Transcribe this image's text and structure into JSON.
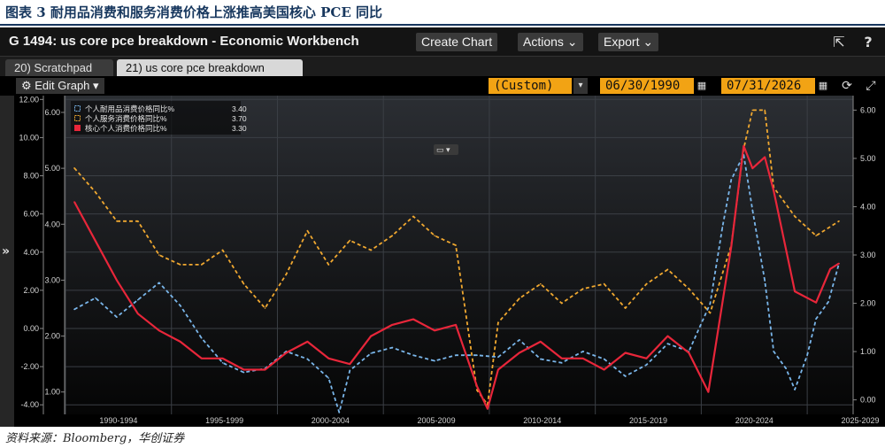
{
  "caption": "图表 3 耐用品消费和服务消费价格上涨推高美国核心 PCE 同比",
  "source": "资料来源：Bloomberg，华创证券",
  "window": {
    "title": "G 1494: us core pce breakdown - Economic Workbench",
    "create_chart": "Create Chart",
    "actions": "Actions ⌄",
    "export": "Export ⌄",
    "help": "?"
  },
  "tabs": [
    {
      "label": "20) Scratchpad"
    },
    {
      "label": "21) us core pce breakdown"
    }
  ],
  "toolbar": {
    "edit_graph": "⚙ Edit Graph ▾",
    "period": "(Custom)",
    "start_date": "06/30/1990",
    "end_date": "07/31/2026"
  },
  "colors": {
    "durable": "#7ab6ea",
    "services": "#f0a830",
    "core": "#e8263a",
    "background": "#000000"
  },
  "chart_data": {
    "type": "line",
    "x_categories": [
      "1990-1994",
      "1995-1999",
      "2000-2004",
      "2005-2009",
      "2010-2014",
      "2015-2019",
      "2020-2024",
      "2025-2029"
    ],
    "xlim": [
      "1990-01",
      "2027-03"
    ],
    "legend_position": "top-left",
    "grid": true,
    "axes": {
      "left_outer": {
        "ticks": [
          "12.00",
          "10.00",
          "8.00",
          "6.00",
          "4.00",
          "2.00",
          "0.00",
          "-2.00",
          "-4.00"
        ],
        "ylim": [
          -4.5,
          12.2
        ]
      },
      "left_inner": {
        "ticks": [
          "6.00",
          "5.00",
          "4.00",
          "3.00",
          "2.00",
          "1.00"
        ],
        "ylim": [
          0.6,
          6.3
        ]
      },
      "right": {
        "ticks": [
          "6.00",
          "5.00",
          "4.00",
          "3.00",
          "2.00",
          "1.00",
          "0.00"
        ],
        "ylim": [
          -0.3,
          6.3
        ]
      }
    },
    "series": [
      {
        "name": "个人耐用品消费价格同比%",
        "last_value": "3.40",
        "axis": "left_outer",
        "style": "dashed",
        "color": "#7ab6ea",
        "x": [
          "1990-06",
          "1991-06",
          "1992-06",
          "1993-06",
          "1994-06",
          "1995-06",
          "1996-06",
          "1997-06",
          "1998-06",
          "1999-06",
          "2000-06",
          "2001-06",
          "2002-06",
          "2002-12",
          "2003-06",
          "2004-06",
          "2005-06",
          "2006-06",
          "2007-06",
          "2008-06",
          "2009-06",
          "2010-06",
          "2011-06",
          "2012-06",
          "2013-06",
          "2014-06",
          "2015-06",
          "2016-06",
          "2017-06",
          "2018-06",
          "2019-06",
          "2020-06",
          "2021-01",
          "2021-06",
          "2022-01",
          "2022-06",
          "2023-01",
          "2023-06",
          "2024-01",
          "2024-06",
          "2025-01",
          "2025-06",
          "2026-01",
          "2026-07"
        ],
        "values": [
          1.0,
          1.6,
          0.6,
          1.5,
          2.4,
          1.2,
          -0.5,
          -1.8,
          -2.3,
          -2.1,
          -1.2,
          -1.6,
          -2.6,
          -4.4,
          -2.2,
          -1.3,
          -1.0,
          -1.4,
          -1.7,
          -1.4,
          -1.4,
          -1.5,
          -0.6,
          -1.6,
          -1.8,
          -1.2,
          -1.6,
          -2.5,
          -1.9,
          -0.8,
          -1.2,
          1.3,
          5.3,
          7.8,
          9.1,
          6.2,
          2.5,
          -1.2,
          -2.1,
          -3.2,
          -1.4,
          0.5,
          1.4,
          3.4
        ]
      },
      {
        "name": "个人服务消费价格同比%",
        "last_value": "3.70",
        "axis": "right",
        "style": "dashed",
        "color": "#f0a830",
        "x": [
          "1990-06",
          "1991-06",
          "1992-06",
          "1993-06",
          "1994-06",
          "1995-06",
          "1996-06",
          "1997-06",
          "1998-06",
          "1999-06",
          "2000-06",
          "2001-06",
          "2002-06",
          "2003-06",
          "2004-06",
          "2005-06",
          "2006-06",
          "2007-06",
          "2008-06",
          "2009-06",
          "2009-12",
          "2010-06",
          "2011-06",
          "2012-06",
          "2013-06",
          "2014-06",
          "2015-06",
          "2016-06",
          "2017-06",
          "2018-06",
          "2019-06",
          "2020-06",
          "2021-06",
          "2022-01",
          "2022-06",
          "2023-01",
          "2023-06",
          "2024-06",
          "2025-06",
          "2026-07"
        ],
        "values": [
          4.8,
          4.3,
          3.7,
          3.7,
          3.0,
          2.8,
          2.8,
          3.1,
          2.4,
          1.9,
          2.6,
          3.5,
          2.8,
          3.3,
          3.1,
          3.4,
          3.8,
          3.4,
          3.2,
          0.2,
          -0.1,
          1.6,
          2.1,
          2.4,
          2.0,
          2.3,
          2.4,
          1.9,
          2.4,
          2.7,
          2.3,
          1.8,
          3.2,
          5.2,
          6.0,
          6.0,
          4.4,
          3.8,
          3.4,
          3.7
        ]
      },
      {
        "name": "核心个人消费价格同比%",
        "last_value": "3.30",
        "axis": "left_inner",
        "style": "solid",
        "color": "#e8263a",
        "x": [
          "1990-06",
          "1991-06",
          "1992-06",
          "1993-06",
          "1994-06",
          "1995-06",
          "1996-06",
          "1997-06",
          "1998-06",
          "1999-06",
          "2000-06",
          "2001-06",
          "2002-06",
          "2003-06",
          "2004-06",
          "2005-06",
          "2006-06",
          "2007-06",
          "2008-06",
          "2009-06",
          "2009-12",
          "2010-06",
          "2011-06",
          "2012-06",
          "2013-06",
          "2014-06",
          "2015-06",
          "2016-06",
          "2017-06",
          "2018-06",
          "2019-06",
          "2020-05",
          "2021-06",
          "2022-01",
          "2022-06",
          "2023-01",
          "2023-06",
          "2024-06",
          "2025-06",
          "2026-02",
          "2026-07"
        ],
        "values": [
          4.4,
          3.7,
          3.0,
          2.4,
          2.1,
          1.9,
          1.6,
          1.6,
          1.4,
          1.4,
          1.7,
          1.9,
          1.6,
          1.5,
          2.0,
          2.2,
          2.3,
          2.1,
          2.2,
          1.1,
          0.7,
          1.4,
          1.7,
          1.9,
          1.6,
          1.6,
          1.4,
          1.7,
          1.6,
          2.0,
          1.7,
          1.0,
          3.6,
          5.4,
          5.0,
          5.2,
          4.6,
          2.8,
          2.6,
          3.2,
          3.3
        ]
      }
    ]
  }
}
